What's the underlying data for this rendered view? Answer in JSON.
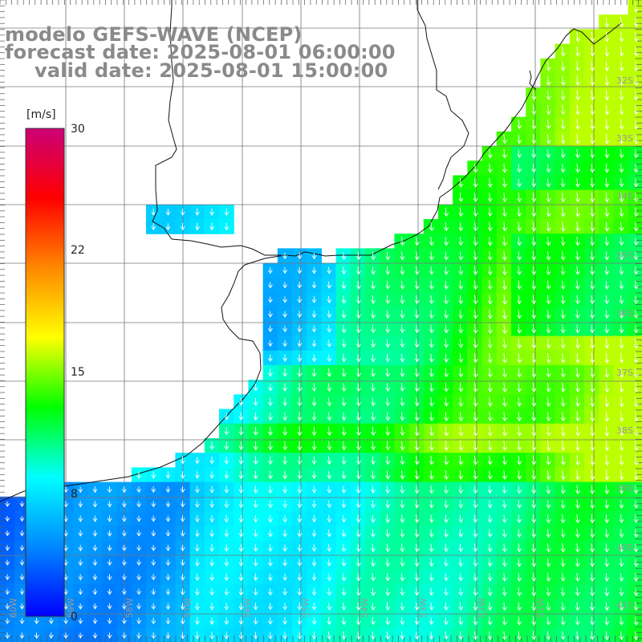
{
  "title": {
    "line1": "modelo GEFS-WAVE (NCEP)",
    "line2": "forecast date: 2025-08-01 06:00:00",
    "line3": "valid date: 2025-08-01 15:00:00"
  },
  "colorbar": {
    "unit": "[m/s]",
    "ticks": [
      "30",
      "22",
      "15",
      "8",
      "0"
    ],
    "colors": [
      "#0000ff",
      "#0088ff",
      "#00ffff",
      "#00ff00",
      "#ffff00",
      "#ff8800",
      "#ff0000",
      "#cc0077"
    ]
  },
  "lat_labels": [
    "32S",
    "33S",
    "34S",
    "35S",
    "36S",
    "37S",
    "38S",
    "39S",
    "40S",
    "41S"
  ],
  "lon_labels": [
    "60W",
    "59W",
    "58W",
    "57W",
    "56W",
    "55W",
    "54W",
    "53W",
    "52W",
    "51W"
  ],
  "field": {
    "variable": "wind speed",
    "unit": "m/s",
    "range": [
      0,
      30
    ],
    "description_values": {
      "coastal_plata_min": 4,
      "offshore_max": 16
    }
  }
}
